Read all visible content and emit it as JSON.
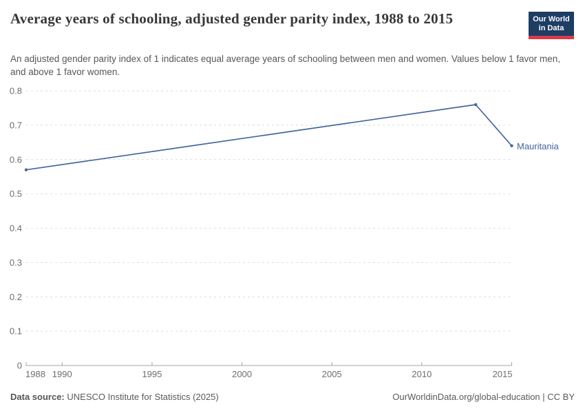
{
  "header": {
    "title": "Average years of schooling, adjusted gender parity index, 1988 to 2015",
    "subtitle": "An adjusted gender parity index of 1 indicates equal average years of schooling between men and women. Values below 1 favor men, and above 1 favor women.",
    "logo": {
      "line1": "Our World",
      "line2": "in Data",
      "bg_color": "#1d3d63",
      "accent_color": "#d93a4a"
    }
  },
  "chart_data": {
    "type": "line",
    "title": "Average years of schooling, adjusted gender parity index, 1988 to 2015",
    "series": [
      {
        "name": "Mauritania",
        "x": [
          1988,
          2013,
          2015
        ],
        "values": [
          0.57,
          0.76,
          0.64
        ],
        "color": "#44659f"
      }
    ],
    "x_ticks": [
      1988,
      1990,
      1995,
      2000,
      2005,
      2010,
      2015
    ],
    "y_ticks": [
      0,
      0.1,
      0.2,
      0.3,
      0.4,
      0.5,
      0.6,
      0.7,
      0.8
    ],
    "xlim": [
      1988,
      2015
    ],
    "ylim": [
      0,
      0.8
    ],
    "grid": "horizontal-dashed",
    "legend_position": "end-of-line-label",
    "axis_text_color": "#6e6e6e",
    "grid_color": "#dcdcdc",
    "axis_line_color": "#a5a5a5"
  },
  "footer": {
    "source_label": "Data source:",
    "source_text": "UNESCO Institute for Statistics (2025)",
    "rights": "OurWorldinData.org/global-education | CC BY"
  }
}
